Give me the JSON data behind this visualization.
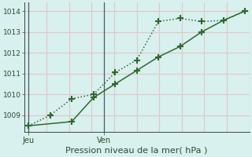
{
  "line1_x": [
    0,
    1,
    2,
    3,
    4,
    5,
    6,
    7,
    8,
    9,
    10
  ],
  "line1_y": [
    1008.5,
    1009.0,
    1009.8,
    1010.0,
    1011.05,
    1011.65,
    1013.5,
    1013.65,
    1013.5,
    1013.55,
    1014.0
  ],
  "line2_x": [
    0,
    2,
    3,
    4,
    5,
    6,
    7,
    8,
    9,
    10
  ],
  "line2_y": [
    1008.5,
    1008.7,
    1009.85,
    1010.5,
    1011.15,
    1011.8,
    1012.3,
    1013.0,
    1013.55,
    1014.0
  ],
  "line_color": "#2d6a2d",
  "bg_color": "#d8f0ee",
  "grid_color_h": "#e0c8c8",
  "grid_color_v": "#e0c8c8",
  "xlabel": "Pression niveau de la mer( hPa )",
  "ylim": [
    1008.2,
    1014.4
  ],
  "xlim": [
    -0.2,
    10.2
  ],
  "yticks": [
    1009,
    1010,
    1011,
    1012,
    1013,
    1014
  ],
  "xtick_positions": [
    0,
    3.5
  ],
  "xtick_labels": [
    "Jeu",
    "Ven"
  ],
  "vline_x": [
    0,
    3.5
  ],
  "vline_color": "#4a5a6a",
  "marker": "+",
  "markersize": 6,
  "markeredgewidth": 1.5,
  "linewidth": 1.1,
  "linestyle1": ":",
  "linestyle2": "-"
}
